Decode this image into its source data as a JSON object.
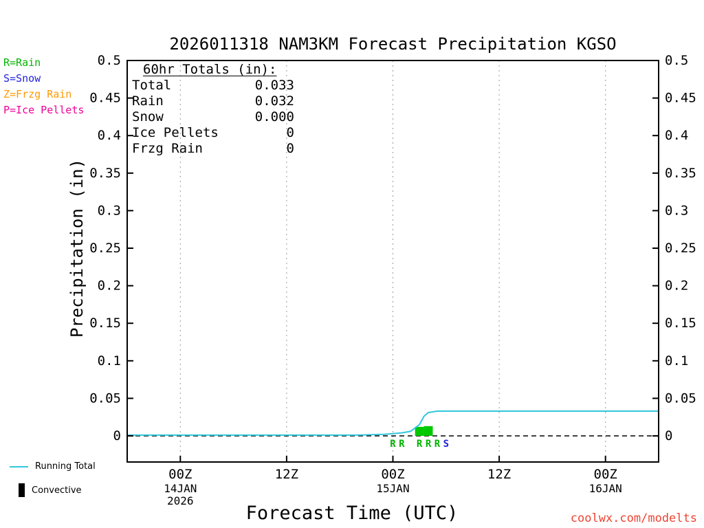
{
  "title": "2026011318 NAM3KM Forecast Precipitation KGSO",
  "xlabel": "Forecast Time (UTC)",
  "ylabel": "Precipitation (in)",
  "watermark": "coolwx.com/modelts",
  "colors": {
    "rain": "#00b400",
    "snow": "#2222dd",
    "frzg_rain": "#ff9900",
    "ice_pellets": "#ee0099",
    "running_total": "#33c6dd",
    "rain_bar": "#00c800",
    "convective": "#000000",
    "grid": "#999999",
    "axis": "#000000",
    "watermark": "#ee4433"
  },
  "type_legend": [
    {
      "label": "R=Rain",
      "color": "#00b400"
    },
    {
      "label": "S=Snow",
      "color": "#2222dd"
    },
    {
      "label": "Z=Frzg Rain",
      "color": "#ff9900"
    },
    {
      "label": "P=Ice Pellets",
      "color": "#ee0099"
    }
  ],
  "totals_box": {
    "heading": "60hr Totals (in):",
    "rows": [
      {
        "label": "Total",
        "value": "0.033"
      },
      {
        "label": "Rain",
        "value": "0.032"
      },
      {
        "label": "Snow",
        "value": "0.000"
      },
      {
        "label": "Ice Pellets",
        "value": "0"
      },
      {
        "label": "Frzg Rain",
        "value": "0"
      }
    ]
  },
  "bottom_legend": {
    "running_total_label": "Running Total",
    "convective_label": "Convective"
  },
  "chart_data": {
    "type": "line",
    "title": "2026011318 NAM3KM Forecast Precipitation KGSO",
    "xlabel": "Forecast Time (UTC)",
    "ylabel": "Precipitation (in)",
    "ylim": [
      0,
      0.5
    ],
    "y_ticks": [
      "0",
      "0.05",
      "0.1",
      "0.15",
      "0.2",
      "0.25",
      "0.3",
      "0.35",
      "0.4",
      "0.45",
      "0.5"
    ],
    "x_hours_range": [
      0,
      60
    ],
    "x_ticks": [
      {
        "hour": 6,
        "label": "00Z",
        "date": "14JAN",
        "year": "2026"
      },
      {
        "hour": 18,
        "label": "12Z"
      },
      {
        "hour": 30,
        "label": "00Z",
        "date": "15JAN"
      },
      {
        "hour": 42,
        "label": "12Z"
      },
      {
        "hour": 54,
        "label": "00Z",
        "date": "16JAN"
      }
    ],
    "grid": "vertical-dotted",
    "legend_position": "bottom-left",
    "series": [
      {
        "name": "Running Total",
        "type": "line",
        "color": "#33c6dd",
        "points": [
          [
            0,
            0.001
          ],
          [
            26,
            0.001
          ],
          [
            29,
            0.002
          ],
          [
            30,
            0.003
          ],
          [
            31,
            0.004
          ],
          [
            32,
            0.006
          ],
          [
            33,
            0.015
          ],
          [
            33.5,
            0.026
          ],
          [
            34,
            0.031
          ],
          [
            35,
            0.033
          ],
          [
            60,
            0.033
          ]
        ]
      },
      {
        "name": "Hourly Rain",
        "type": "bar",
        "color": "#00c800",
        "points": [
          [
            33,
            0.012
          ],
          [
            34,
            0.013
          ]
        ]
      }
    ],
    "precip_type_markers": [
      {
        "hour": 30,
        "type": "R"
      },
      {
        "hour": 31,
        "type": "R"
      },
      {
        "hour": 33,
        "type": "R"
      },
      {
        "hour": 34,
        "type": "R"
      },
      {
        "hour": 35,
        "type": "R"
      },
      {
        "hour": 36,
        "type": "S"
      }
    ]
  }
}
